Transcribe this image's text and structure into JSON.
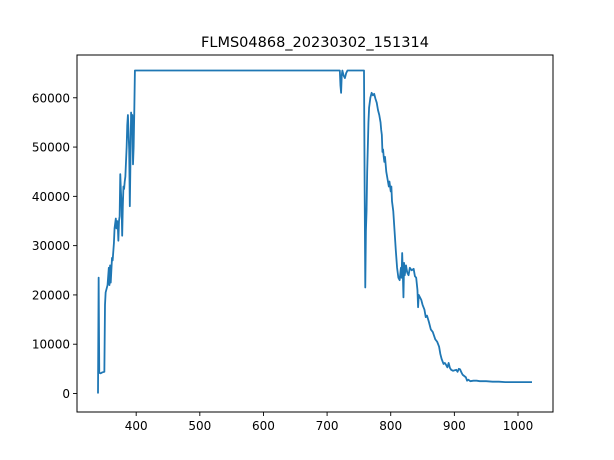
{
  "chart_data": {
    "type": "line",
    "title": "FLMS04868_20230302_151314",
    "xlabel": "",
    "ylabel": "",
    "xlim": [
      340,
      1022
    ],
    "ylim": [
      0,
      65535
    ],
    "xticks": [
      400,
      500,
      600,
      700,
      800,
      900,
      1000
    ],
    "yticks": [
      0,
      10000,
      20000,
      30000,
      40000,
      50000,
      60000
    ],
    "grid": false,
    "legend": "none",
    "series": [
      {
        "color": "#1f77b4",
        "points": [
          [
            340,
            0
          ],
          [
            341,
            23500
          ],
          [
            342,
            4200
          ],
          [
            344,
            4100
          ],
          [
            347,
            4300
          ],
          [
            350,
            4400
          ],
          [
            351,
            18000
          ],
          [
            352,
            20500
          ],
          [
            355,
            22000
          ],
          [
            357,
            25500
          ],
          [
            358,
            22000
          ],
          [
            359,
            26000
          ],
          [
            360,
            22500
          ],
          [
            362,
            27500
          ],
          [
            363,
            27000
          ],
          [
            365,
            30500
          ],
          [
            366,
            33500
          ],
          [
            368,
            35500
          ],
          [
            369,
            33500
          ],
          [
            370,
            35000
          ],
          [
            371,
            34500
          ],
          [
            372,
            31000
          ],
          [
            373,
            35000
          ],
          [
            374,
            36000
          ],
          [
            375,
            44500
          ],
          [
            376,
            41000
          ],
          [
            377,
            38500
          ],
          [
            378,
            32000
          ],
          [
            379,
            38000
          ],
          [
            380,
            42000
          ],
          [
            381,
            41500
          ],
          [
            382,
            43000
          ],
          [
            383,
            44000
          ],
          [
            384,
            47000
          ],
          [
            385,
            50000
          ],
          [
            386,
            54500
          ],
          [
            387,
            56500
          ],
          [
            388,
            53000
          ],
          [
            389,
            49500
          ],
          [
            390,
            38000
          ],
          [
            391,
            47000
          ],
          [
            392,
            57000
          ],
          [
            393,
            55500
          ],
          [
            394,
            56500
          ],
          [
            395,
            46500
          ],
          [
            396,
            50000
          ],
          [
            397,
            57000
          ],
          [
            398,
            65535
          ],
          [
            720,
            65535
          ],
          [
            721,
            62500
          ],
          [
            722,
            61000
          ],
          [
            723,
            64500
          ],
          [
            724,
            65535
          ],
          [
            726,
            64500
          ],
          [
            728,
            64000
          ],
          [
            730,
            65000
          ],
          [
            732,
            65535
          ],
          [
            758,
            65535
          ],
          [
            759,
            42000
          ],
          [
            760,
            21500
          ],
          [
            761,
            33000
          ],
          [
            762,
            37000
          ],
          [
            763,
            45000
          ],
          [
            764,
            50000
          ],
          [
            765,
            55000
          ],
          [
            766,
            58000
          ],
          [
            768,
            60000
          ],
          [
            770,
            61000
          ],
          [
            772,
            60500
          ],
          [
            774,
            60800
          ],
          [
            776,
            59800
          ],
          [
            778,
            59000
          ],
          [
            780,
            57500
          ],
          [
            782,
            56500
          ],
          [
            784,
            55000
          ],
          [
            785,
            53500
          ],
          [
            786,
            52500
          ],
          [
            787,
            49000
          ],
          [
            788,
            49500
          ],
          [
            789,
            48000
          ],
          [
            790,
            47000
          ],
          [
            791,
            48000
          ],
          [
            792,
            46500
          ],
          [
            793,
            45000
          ],
          [
            795,
            43500
          ],
          [
            797,
            42000
          ],
          [
            798,
            43000
          ],
          [
            800,
            41000
          ],
          [
            801,
            42000
          ],
          [
            802,
            39000
          ],
          [
            804,
            37000
          ],
          [
            806,
            33000
          ],
          [
            808,
            29000
          ],
          [
            810,
            25500
          ],
          [
            812,
            23500
          ],
          [
            814,
            23000
          ],
          [
            816,
            25500
          ],
          [
            817,
            23500
          ],
          [
            818,
            28500
          ],
          [
            819,
            24500
          ],
          [
            820,
            19500
          ],
          [
            821,
            26500
          ],
          [
            822,
            24000
          ],
          [
            824,
            26000
          ],
          [
            826,
            24500
          ],
          [
            828,
            24000
          ],
          [
            830,
            25500
          ],
          [
            833,
            25000
          ],
          [
            836,
            25300
          ],
          [
            838,
            23800
          ],
          [
            840,
            23500
          ],
          [
            842,
            21000
          ],
          [
            843,
            17500
          ],
          [
            844,
            20000
          ],
          [
            846,
            19500
          ],
          [
            848,
            19000
          ],
          [
            850,
            18000
          ],
          [
            853,
            17000
          ],
          [
            855,
            15500
          ],
          [
            857,
            15800
          ],
          [
            860,
            14500
          ],
          [
            863,
            13000
          ],
          [
            866,
            12500
          ],
          [
            870,
            11000
          ],
          [
            873,
            10500
          ],
          [
            876,
            9500
          ],
          [
            878,
            8000
          ],
          [
            880,
            7000
          ],
          [
            883,
            6000
          ],
          [
            885,
            6200
          ],
          [
            887,
            5800
          ],
          [
            889,
            5300
          ],
          [
            891,
            6200
          ],
          [
            893,
            5200
          ],
          [
            895,
            4800
          ],
          [
            898,
            4600
          ],
          [
            900,
            4700
          ],
          [
            903,
            4800
          ],
          [
            905,
            4400
          ],
          [
            907,
            5000
          ],
          [
            909,
            4900
          ],
          [
            911,
            4300
          ],
          [
            913,
            3800
          ],
          [
            916,
            3500
          ],
          [
            918,
            3300
          ],
          [
            920,
            2600
          ],
          [
            922,
            2800
          ],
          [
            925,
            2500
          ],
          [
            930,
            2600
          ],
          [
            935,
            2600
          ],
          [
            940,
            2500
          ],
          [
            950,
            2500
          ],
          [
            960,
            2400
          ],
          [
            970,
            2400
          ],
          [
            980,
            2300
          ],
          [
            990,
            2300
          ],
          [
            1000,
            2300
          ],
          [
            1010,
            2300
          ],
          [
            1022,
            2300
          ]
        ]
      }
    ]
  }
}
